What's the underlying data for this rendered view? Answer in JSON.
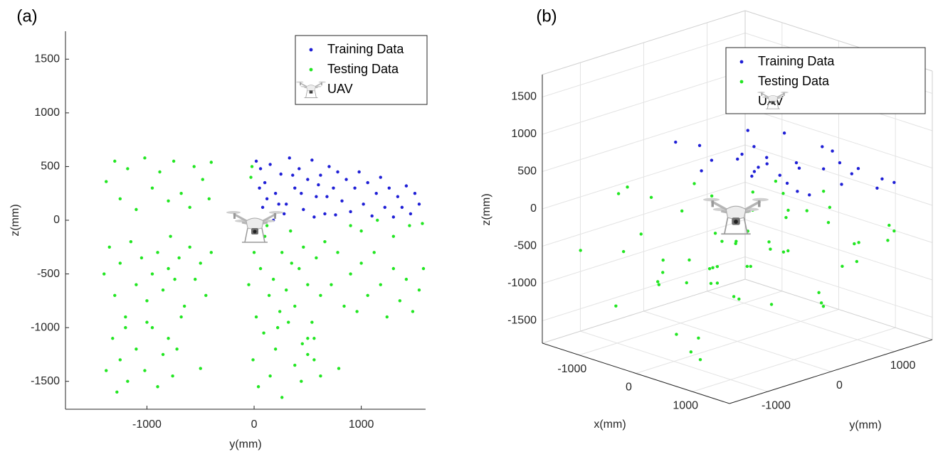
{
  "chart_data": [
    {
      "type": "scatter",
      "panel_label": "(a)",
      "xlabel": "y(mm)",
      "ylabel": "z(mm)",
      "xlim": [
        -1760,
        1600
      ],
      "ylim": [
        -1760,
        1760
      ],
      "xticks": [
        -1000,
        0,
        1000
      ],
      "yticks": [
        -1500,
        -1000,
        -500,
        0,
        500,
        1000,
        1500
      ],
      "grid": false,
      "legend": "upper right",
      "uav_label": "UAV",
      "series": [
        {
          "name": "Training Data",
          "color": "#1f1fd6",
          "x": [
            20,
            60,
            100,
            150,
            200,
            250,
            300,
            330,
            380,
            420,
            460,
            500,
            540,
            580,
            620,
            660,
            700,
            740,
            780,
            820,
            860,
            900,
            940,
            980,
            1020,
            1060,
            1100,
            1140,
            1180,
            1220,
            1260,
            1300,
            1340,
            1380,
            1420,
            1460,
            1500,
            1540,
            80,
            180,
            280,
            360,
            440,
            560,
            680,
            50,
            120,
            230,
            600,
            760
          ],
          "y": [
            550,
            480,
            350,
            520,
            250,
            430,
            150,
            580,
            300,
            480,
            100,
            380,
            560,
            220,
            420,
            60,
            500,
            300,
            450,
            180,
            380,
            80,
            300,
            450,
            150,
            350,
            40,
            250,
            400,
            120,
            300,
            30,
            220,
            120,
            320,
            60,
            250,
            150,
            120,
            0,
            60,
            420,
            250,
            30,
            220,
            300,
            200,
            150,
            330,
            50
          ]
        },
        {
          "name": "Testing Data",
          "color": "#22e622",
          "x": [
            -1380,
            -1300,
            -1250,
            -1180,
            -1100,
            -1020,
            -950,
            -880,
            -800,
            -750,
            -680,
            -600,
            -560,
            -480,
            -420,
            -400,
            -1400,
            -1350,
            -1300,
            -1250,
            -1200,
            -1150,
            -1100,
            -1050,
            -1000,
            -950,
            -900,
            -850,
            -800,
            -780,
            -740,
            -700,
            -650,
            -600,
            -550,
            -500,
            -450,
            -400,
            -1200,
            -1000,
            -1380,
            -1320,
            -1280,
            -1250,
            -1180,
            -1100,
            -1020,
            -950,
            -900,
            -850,
            -800,
            -760,
            -720,
            -680,
            -500,
            -50,
            0,
            20,
            60,
            100,
            140,
            180,
            220,
            260,
            300,
            340,
            380,
            420,
            460,
            500,
            540,
            580,
            620,
            660,
            450,
            500,
            560,
            120,
            350,
            240,
            720,
            780,
            840,
            900,
            960,
            1000,
            1060,
            1120,
            1180,
            1240,
            1300,
            1360,
            1420,
            1480,
            1540,
            1580,
            -10,
            40,
            90,
            150,
            200,
            260,
            320,
            380,
            440,
            500,
            560,
            620,
            790,
            900,
            1000,
            1150,
            1300,
            1450,
            1570,
            -20,
            -30
          ],
          "y": [
            360,
            550,
            200,
            480,
            100,
            580,
            300,
            450,
            180,
            550,
            250,
            120,
            500,
            380,
            200,
            540,
            -500,
            -250,
            -700,
            -400,
            -900,
            -200,
            -600,
            -350,
            -750,
            -500,
            -300,
            -650,
            -450,
            -150,
            -550,
            -350,
            -800,
            -250,
            -550,
            -400,
            -700,
            -300,
            -1000,
            -950,
            -1400,
            -1100,
            -1600,
            -1300,
            -1500,
            -1200,
            -1400,
            -1000,
            -1550,
            -1250,
            -1100,
            -1450,
            -1200,
            -900,
            -1380,
            -600,
            -300,
            -900,
            -450,
            -150,
            -700,
            -550,
            -1000,
            -300,
            -650,
            -100,
            -800,
            -450,
            -250,
            -600,
            -950,
            -350,
            -700,
            -200,
            -1150,
            -1250,
            -1100,
            -50,
            -400,
            -850,
            -600,
            -300,
            -800,
            -500,
            -850,
            -400,
            -700,
            -300,
            -600,
            -900,
            -450,
            -750,
            -550,
            -850,
            -650,
            -450,
            -1300,
            -1550,
            -1050,
            -1450,
            -1200,
            -1650,
            -950,
            -1350,
            -1500,
            -1100,
            -1300,
            -1450,
            -1380,
            -50,
            -100,
            0,
            -150,
            -50,
            -30,
            500,
            400
          ]
        }
      ]
    },
    {
      "type": "scatter3d",
      "panel_label": "(b)",
      "xlabel": "x(mm)",
      "ylabel": "y(mm)",
      "zlabel": "z(mm)",
      "xlim": [
        -1650,
        1650
      ],
      "ylim": [
        -1600,
        1600
      ],
      "zlim": [
        -1800,
        1800
      ],
      "xticks": [
        -1000,
        0,
        1000
      ],
      "yticks": [
        -1000,
        0,
        1000
      ],
      "zticks": [
        -1500,
        -1000,
        -500,
        0,
        500,
        1000,
        1500
      ],
      "grid": true,
      "legend": "upper right",
      "uav_label": "UAV",
      "series": [
        {
          "name": "Training Data",
          "color": "#1f1fd6",
          "x": [
            -1200,
            -900,
            -600,
            -300,
            0,
            300,
            600,
            900,
            1200,
            -1000,
            -700,
            -400,
            -100,
            200,
            500,
            800,
            1100,
            -800,
            -500,
            -200,
            100,
            400,
            700,
            1000,
            -1100,
            -300,
            300,
            900,
            -600,
            600
          ],
          "y": [
            100,
            400,
            800,
            1200,
            1500,
            200,
            600,
            1000,
            1400,
            300,
            700,
            1100,
            1450,
            50,
            500,
            900,
            1300,
            150,
            450,
            850,
            1250,
            1550,
            350,
            750,
            1150,
            600,
            0,
            1400,
            1000,
            250
          ],
          "z": [
            550,
            300,
            450,
            200,
            350,
            600,
            150,
            400,
            250,
            500,
            350,
            600,
            100,
            450,
            200,
            550,
            300,
            250,
            400,
            150,
            500,
            200,
            600,
            350,
            450,
            300,
            550,
            100,
            250,
            400
          ]
        },
        {
          "name": "Testing Data",
          "color": "#22e622",
          "x": [
            -1200,
            -800,
            -400,
            0,
            400,
            800,
            1200,
            -1000,
            -600,
            -200,
            200,
            600,
            1000,
            -1100,
            -700,
            -300,
            100,
            500,
            900,
            -900,
            -500,
            -100,
            300,
            700,
            1100,
            -1200,
            -800,
            -400,
            0,
            400,
            800,
            1200,
            -1000,
            -600,
            -200,
            200,
            600,
            1000,
            -1100,
            -700,
            -300,
            100,
            500,
            900,
            -900,
            -500,
            -100,
            300,
            700,
            1100,
            -1200,
            -600,
            0,
            600,
            1200,
            -800,
            -200,
            400,
            1000,
            -400
          ],
          "y": [
            -1400,
            -1200,
            -1000,
            -800,
            -600,
            -1300,
            -1100,
            -900,
            -700,
            -500,
            -1350,
            -1150,
            -950,
            -750,
            -550,
            -1250,
            -1050,
            -850,
            -650,
            -450,
            100,
            300,
            500,
            700,
            900,
            200,
            400,
            600,
            800,
            1000,
            1200,
            1400,
            1500,
            150,
            350,
            550,
            750,
            950,
            1150,
            1350,
            250,
            450,
            650,
            850,
            1050,
            1250,
            1450,
            -1000,
            -600,
            -1300,
            -800,
            100,
            500,
            900,
            1300,
            300,
            700,
            1100,
            1500,
            -400
          ],
          "z": [
            -500,
            -1200,
            300,
            -800,
            -200,
            -1500,
            100,
            -600,
            -1000,
            400,
            -300,
            -1300,
            -700,
            200,
            -900,
            -100,
            -1400,
            500,
            -400,
            -1100,
            -500,
            -900,
            -200,
            -1300,
            -700,
            -400,
            -1100,
            -300,
            -800,
            -1500,
            -600,
            -400,
            -300,
            -1000,
            -200,
            -700,
            -1200,
            -500,
            -900,
            -350,
            -600,
            -1400,
            -100,
            -800,
            -300,
            -500,
            -200,
            -1600,
            -900,
            -400,
            100,
            -1000,
            -600,
            -300,
            -500,
            -1300,
            -800,
            -200,
            -400,
            -700
          ]
        }
      ]
    }
  ]
}
